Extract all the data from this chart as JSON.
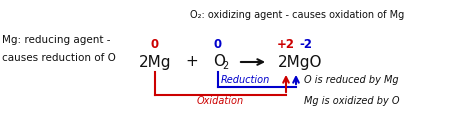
{
  "bg_color": "#ffffff",
  "title_text": "O₂: oxidizing agent - causes oxidation of Mg",
  "left_label_line1": "Mg: reducing agent -",
  "left_label_line2": "causes reduction of O",
  "num_2mg_label": "0",
  "num_2mg_color": "#cc0000",
  "num_o2_label": "0",
  "num_o2_color": "#0000cc",
  "num_2mgo_label1": "+2",
  "num_2mgo_color1": "#cc0000",
  "num_2mgo_label2": "-2",
  "num_2mgo_color2": "#0000cc",
  "eq_2mg": "2Mg",
  "eq_plus": "+",
  "eq_o2a": "O",
  "eq_o2b": "2",
  "eq_2mgo": "2MgO",
  "reduction_label": "Reduction",
  "oxidation_label": "Oxidation",
  "o_reduced_label": "O is reduced by Mg",
  "mg_oxidized_label": "Mg is oxidized by O",
  "red_color": "#cc0000",
  "blue_color": "#0000cc",
  "black_color": "#111111"
}
